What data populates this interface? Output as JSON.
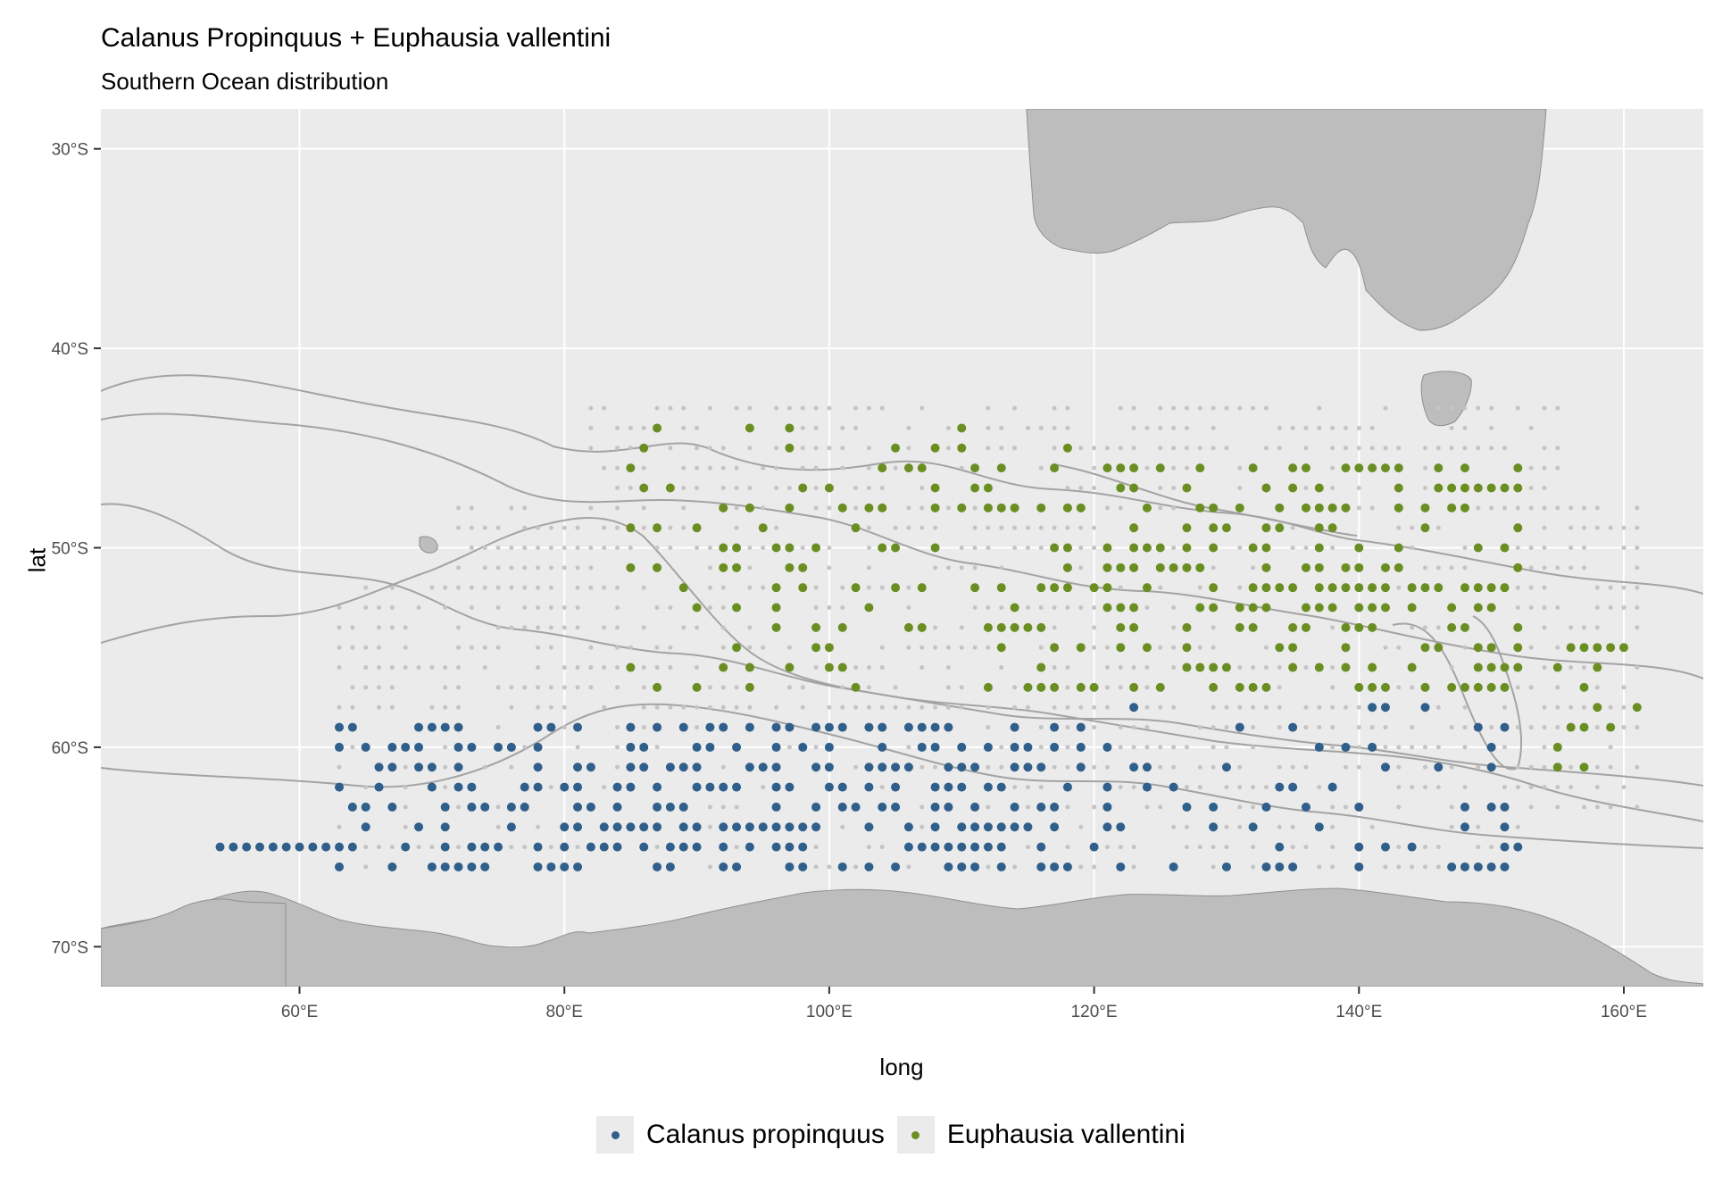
{
  "title": "Calanus Propinquus + Euphausia vallentini",
  "subtitle": "Southern Ocean distribution",
  "xlabel": "long",
  "ylabel": "lat",
  "colors": {
    "panel": "#ebebeb",
    "grid": "#ffffff",
    "land": "#bdbdbd",
    "contour": "#a3a3a3",
    "sample": "#c4c4c4",
    "calanus": "#2f5f8a",
    "euphausia": "#6b8e23"
  },
  "map_data": {
    "xlim": [
      45,
      166
    ],
    "ylim": [
      -72,
      -28
    ],
    "x_ticks": [
      {
        "value": 60,
        "label": "60°E"
      },
      {
        "value": 80,
        "label": "80°E"
      },
      {
        "value": 100,
        "label": "100°E"
      },
      {
        "value": 120,
        "label": "120°E"
      },
      {
        "value": 140,
        "label": "140°E"
      },
      {
        "value": 160,
        "label": "160°E"
      }
    ],
    "y_ticks": [
      {
        "value": -30,
        "label": "30°S"
      },
      {
        "value": -40,
        "label": "40°S"
      },
      {
        "value": -50,
        "label": "50°S"
      },
      {
        "value": -60,
        "label": "60°S"
      },
      {
        "value": -70,
        "label": "70°S"
      }
    ],
    "series": [
      {
        "name": "Calanus propinquus",
        "color": "#2f5f8a"
      },
      {
        "name": "Euphausia vallentini",
        "color": "#6b8e23"
      }
    ]
  },
  "legend": [
    {
      "label": "Calanus propinquus",
      "color": "#2f5f8a"
    },
    {
      "label": "Euphausia vallentini",
      "color": "#6b8e23"
    }
  ]
}
